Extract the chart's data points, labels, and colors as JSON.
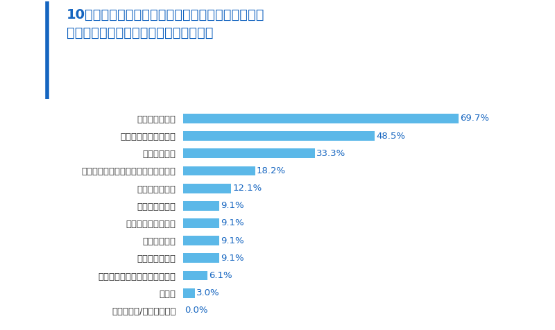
{
  "title_line1": "10年での経理・総務における業務内容・職場環境の",
  "title_line2": "変化を教えてください。　（複数回答）",
  "categories": [
    "ペーパーレス化",
    "リモートワークの導入",
    "業務の自動化",
    "社内コミュニケーションのデジタル化",
    "福利厚生の充実",
    "業務範囲の拡大",
    "チームでの活動増加",
    "人材の多様化",
    "外部委託の増加",
    "仕事のスピードへの要求の増加",
    "その他",
    "わからない/答えられない"
  ],
  "values": [
    69.7,
    48.5,
    33.3,
    18.2,
    12.1,
    9.1,
    9.1,
    9.1,
    9.1,
    6.1,
    3.0,
    0.0
  ],
  "labels": [
    "69.7%",
    "48.5%",
    "33.3%",
    "18.2%",
    "12.1%",
    "9.1%",
    "9.1%",
    "9.1%",
    "9.1%",
    "6.1%",
    "3.0%",
    "0.0%"
  ],
  "bar_color": "#5BB8E8",
  "title_color": "#1565C0",
  "label_color": "#1565C0",
  "category_color": "#333333",
  "background_color": "#FFFFFF",
  "left_border_color": "#1565C0",
  "xlim": [
    0,
    80
  ],
  "title_fontsize": 14,
  "label_fontsize": 9.5,
  "category_fontsize": 9.5,
  "bar_height": 0.55
}
